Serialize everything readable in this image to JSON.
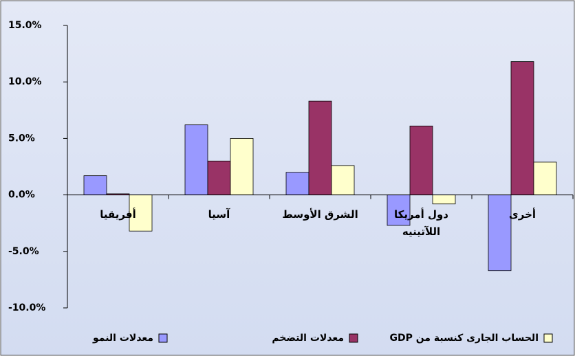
{
  "chart_data": {
    "type": "bar",
    "categories": [
      "أفريقيا",
      "آسيا",
      "الشرق الأوسط",
      "دول أمريكا اللآتينيه",
      "أخرى"
    ],
    "series": [
      {
        "name": "معدلات النمو",
        "color": "#9999ff",
        "values": [
          1.7,
          6.2,
          2.0,
          -2.7,
          -6.7
        ]
      },
      {
        "name": "معدلات التضخم",
        "color": "#993366",
        "values": [
          0.1,
          3.0,
          8.3,
          6.1,
          11.8
        ]
      },
      {
        "name": "الحساب الجارى كنسبة من GDP",
        "color": "#ffffcc",
        "values": [
          -3.2,
          5.0,
          2.6,
          -0.8,
          2.9
        ]
      }
    ],
    "ylim": [
      -10,
      15
    ],
    "yticks": [
      {
        "value": 15,
        "label": "15.0%"
      },
      {
        "value": 10,
        "label": "10.0%"
      },
      {
        "value": 5,
        "label": "5.0%"
      },
      {
        "value": 0,
        "label": "0.0%"
      },
      {
        "value": -5,
        "label": "-5.0%"
      },
      {
        "value": -10,
        "label": "-10.0%"
      }
    ],
    "legend": "bottom"
  }
}
